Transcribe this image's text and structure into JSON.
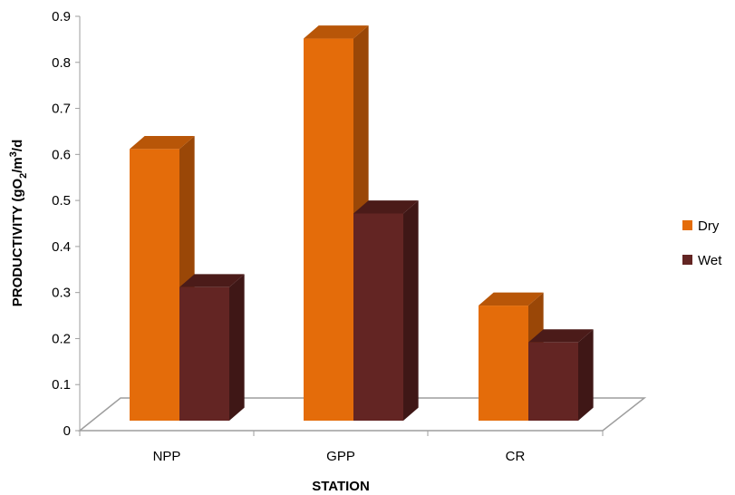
{
  "chart_data": {
    "type": "bar",
    "subtype": "3d-clustered-column",
    "categories": [
      "NPP",
      "GPP",
      "CR"
    ],
    "series": [
      {
        "name": "Dry",
        "values": [
          0.59,
          0.83,
          0.25
        ],
        "color": "#E46C0A",
        "side_color": "#9A4707",
        "top_color": "#B85608"
      },
      {
        "name": "Wet",
        "values": [
          0.29,
          0.45,
          0.17
        ],
        "color": "#632523",
        "side_color": "#3F1716",
        "top_color": "#4B1B19"
      }
    ],
    "xlabel": "STATION",
    "ylabel_main": "PRODUCTIVITY  (gO",
    "ylabel_sub1": "2",
    "ylabel_mid": "/m",
    "ylabel_sup": "3",
    "ylabel_end": "/d",
    "ylim": [
      0,
      0.9
    ],
    "yticks": [
      "0",
      "0.1",
      "0.2",
      "0.3",
      "0.4",
      "0.5",
      "0.6",
      "0.7",
      "0.8",
      "0.9"
    ],
    "grid": false,
    "legend_position": "right",
    "floor_color": "#9E9E9E"
  }
}
